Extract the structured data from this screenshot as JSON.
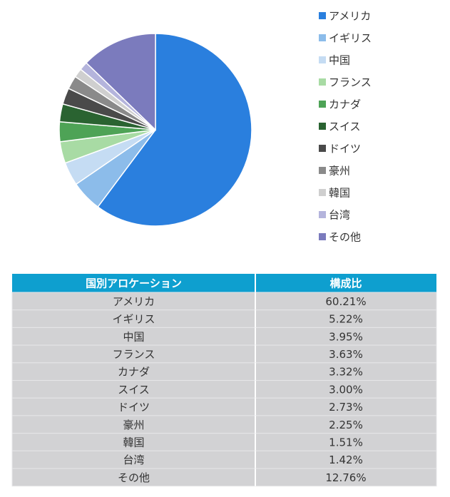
{
  "chart_data": {
    "type": "pie",
    "categories": [
      "アメリカ",
      "イギリス",
      "中国",
      "フランス",
      "カナダ",
      "スイス",
      "ドイツ",
      "豪州",
      "韓国",
      "台湾",
      "その他"
    ],
    "values": [
      60.21,
      5.22,
      3.95,
      3.63,
      3.32,
      3.0,
      2.73,
      2.25,
      1.51,
      1.42,
      12.76
    ],
    "value_labels": [
      "60.21%",
      "5.22%",
      "3.95%",
      "3.63%",
      "3.32%",
      "3.00%",
      "2.73%",
      "2.25%",
      "1.51%",
      "1.42%",
      "12.76%"
    ],
    "colors": [
      "#2a7fde",
      "#8cbcea",
      "#c5dcf3",
      "#a8dba4",
      "#4ea356",
      "#2a6331",
      "#4a4a4a",
      "#8a8a8a",
      "#cfcfcf",
      "#b4b4dc",
      "#7b7bbd"
    ],
    "legend": "right"
  },
  "table": {
    "columns": [
      "国別アロケーション",
      "構成比"
    ]
  }
}
